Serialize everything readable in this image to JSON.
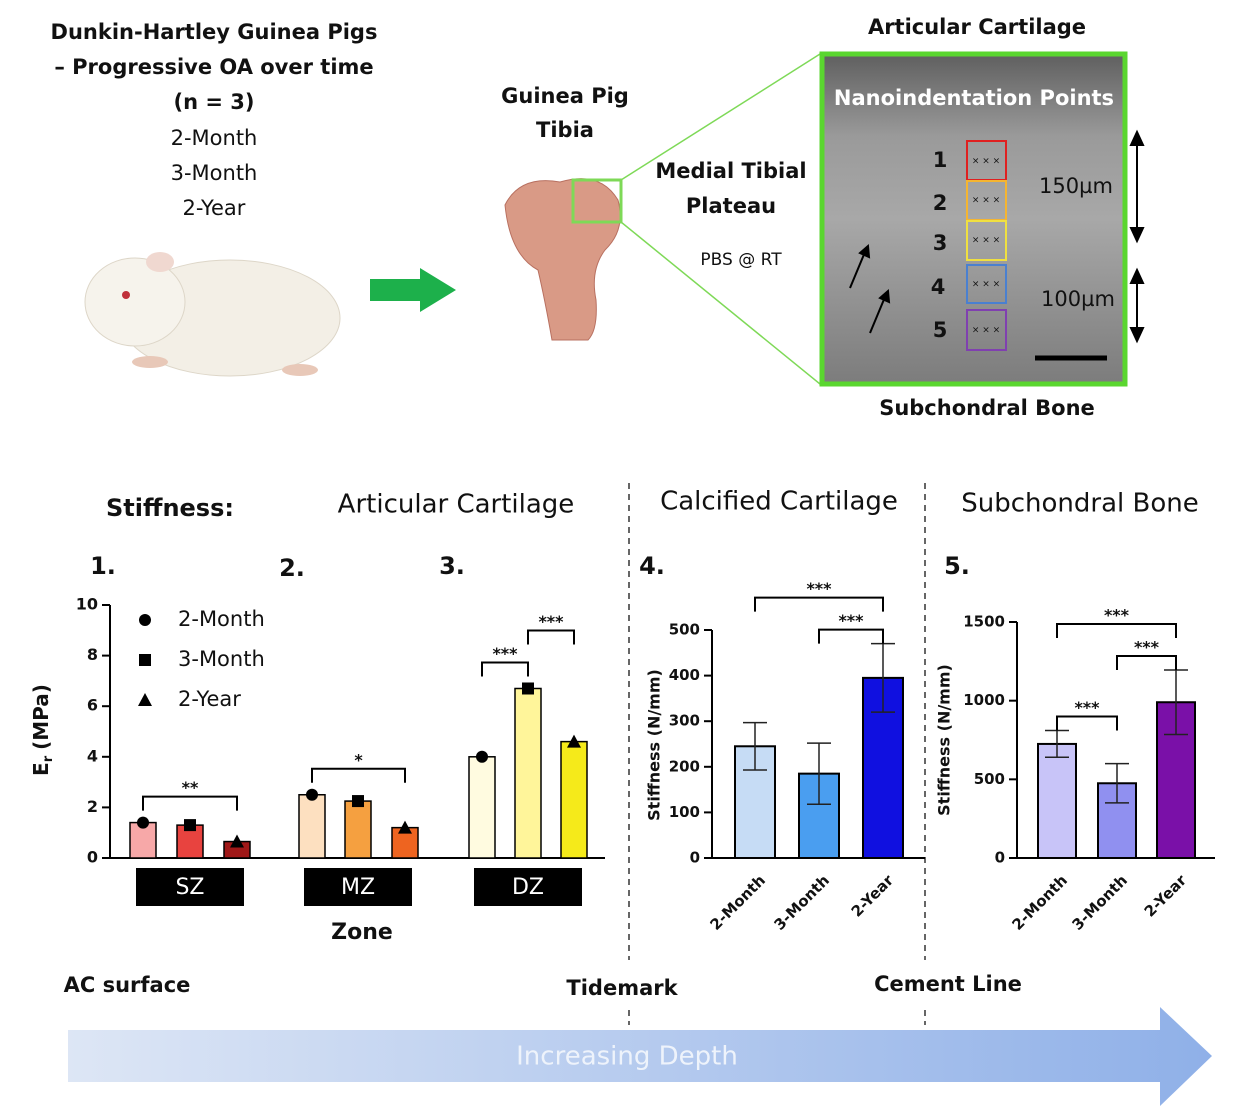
{
  "study": {
    "title": [
      "Dunkin-Hartley Guinea Pigs",
      "– Progressive OA over time",
      "(n = 3)"
    ],
    "groups": [
      "2-Month",
      "3-Month",
      "2-Year"
    ]
  },
  "specimen": {
    "label": [
      "Guinea Pig",
      "Tibia"
    ],
    "region": [
      "Medial Tibial",
      "Plateau"
    ],
    "condition": "PBS @ RT"
  },
  "micrograph": {
    "top_label": "Articular Cartilage",
    "title": "Nanoindentation Points",
    "points": [
      "1",
      "2",
      "3",
      "4",
      "5"
    ],
    "scales": [
      "150µm",
      "100µm"
    ],
    "bottom_label": "Subchondral Bone"
  },
  "stiffness_heading": "Stiffness:",
  "sections": [
    "Articular Cartilage",
    "Calcified Cartilage",
    "Subchondral Bone"
  ],
  "panel_numbers": [
    "1.",
    "2.",
    "3.",
    "4.",
    "5."
  ],
  "chart_data": [
    {
      "type": "grouped_bar",
      "categories": [
        "SZ",
        "MZ",
        "DZ"
      ],
      "x_label": "Zone",
      "y_label": [
        "E",
        "r",
        "(MPa)"
      ],
      "ylim": [
        0,
        10
      ],
      "yticks": [
        0,
        2,
        4,
        6,
        8,
        10
      ],
      "legend": "top-left",
      "series": [
        {
          "name": "2-Month",
          "marker": "circle",
          "colors": [
            "#f7a8a8",
            "#fde0c0",
            "#fffbe0"
          ],
          "values": [
            1.4,
            2.5,
            4.0
          ]
        },
        {
          "name": "3-Month",
          "marker": "square",
          "colors": [
            "#e8433f",
            "#f5a040",
            "#fff59a"
          ],
          "values": [
            1.3,
            2.25,
            6.7
          ]
        },
        {
          "name": "2-Year",
          "marker": "triangle",
          "colors": [
            "#a01818",
            "#ee6420",
            "#f5ea1a"
          ],
          "values": [
            0.65,
            1.2,
            4.6
          ]
        }
      ],
      "annotations": [
        {
          "label": "**",
          "category": 0,
          "from": 0,
          "to": 2
        },
        {
          "label": "*",
          "category": 1,
          "from": 0,
          "to": 2
        },
        {
          "label": "***",
          "category": 2,
          "from": 0,
          "to": 1
        },
        {
          "label": "***",
          "category": 2,
          "from": 1,
          "to": 2
        }
      ]
    },
    {
      "type": "bar",
      "categories": [
        "2-Month",
        "3-Month",
        "2-Year"
      ],
      "values": [
        245,
        185,
        395
      ],
      "errors": [
        52,
        67,
        75
      ],
      "colors": [
        "#c6dcf5",
        "#4a9ef0",
        "#1010e0"
      ],
      "y_label": "Stiffness (N/mm)",
      "ylim": [
        0,
        500
      ],
      "yticks": [
        0,
        100,
        200,
        300,
        400,
        500
      ],
      "annotations": [
        {
          "label": "***",
          "from": 1,
          "to": 2
        },
        {
          "label": "***",
          "from": 0,
          "to": 2
        }
      ]
    },
    {
      "type": "bar",
      "categories": [
        "2-Month",
        "3-Month",
        "2-Year"
      ],
      "values": [
        725,
        475,
        990
      ],
      "errors": [
        85,
        125,
        205
      ],
      "colors": [
        "#c8c4f8",
        "#9090f0",
        "#7a10a8"
      ],
      "y_label": "Stiffness (N/mm)",
      "ylim": [
        0,
        1500
      ],
      "yticks": [
        0,
        500,
        1000,
        1500
      ],
      "annotations": [
        {
          "label": "***",
          "from": 0,
          "to": 1
        },
        {
          "label": "***",
          "from": 1,
          "to": 2
        },
        {
          "label": "***",
          "from": 0,
          "to": 2
        }
      ]
    }
  ],
  "depth": {
    "landmarks": [
      "AC surface",
      "Tidemark",
      "Cement Line"
    ],
    "label": "Increasing Depth"
  }
}
